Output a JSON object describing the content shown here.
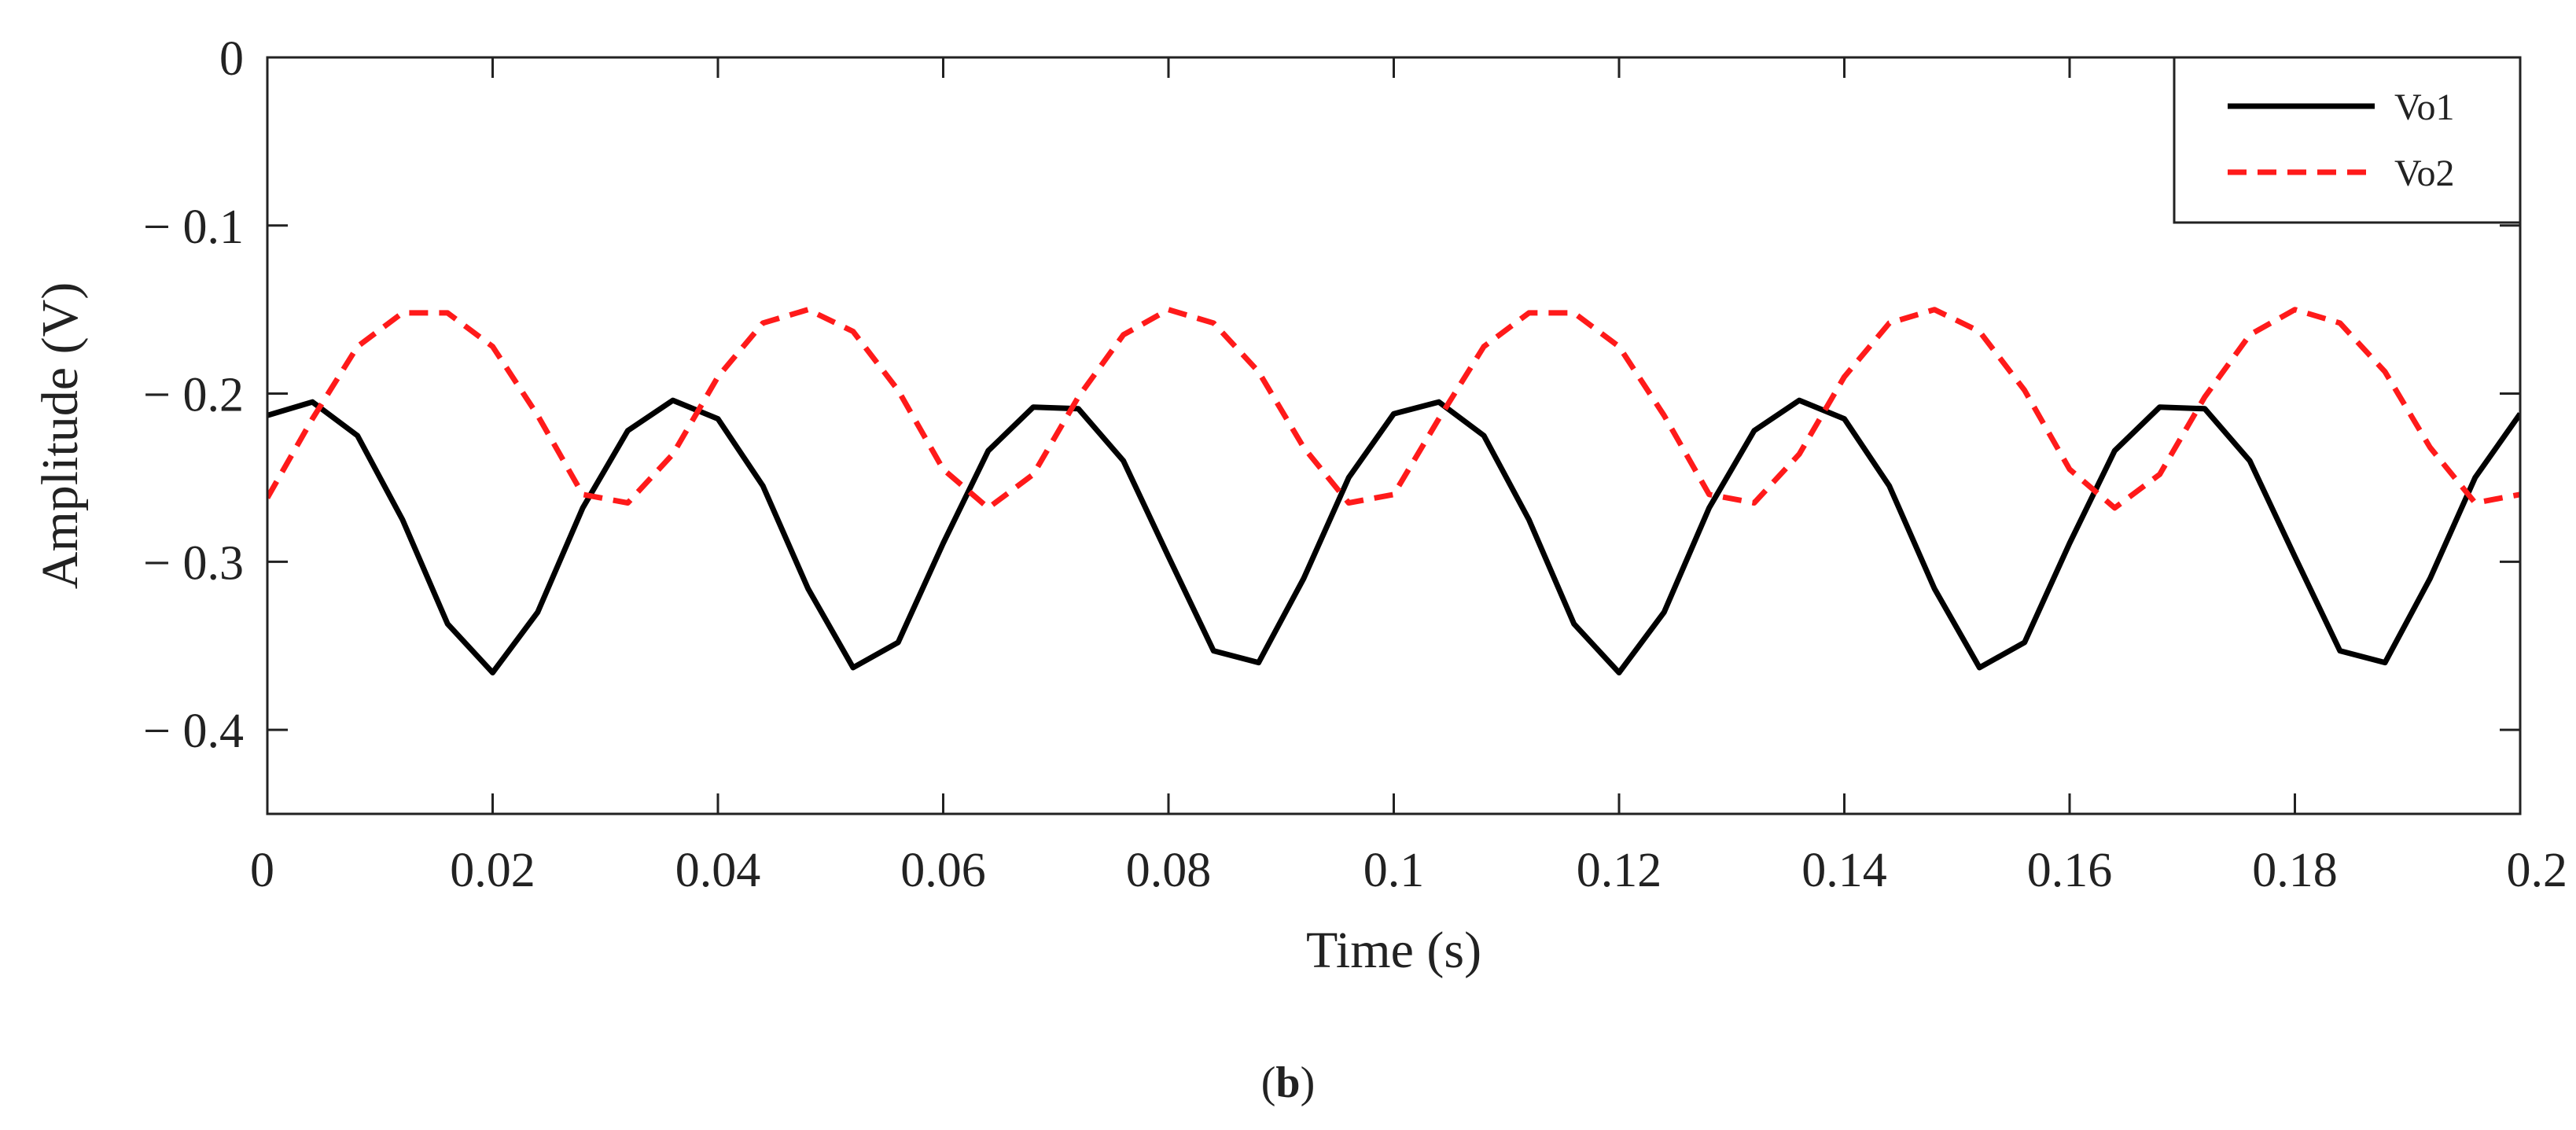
{
  "chart_data": {
    "type": "line",
    "title": "",
    "xlabel": "Time (s)",
    "ylabel": "Amplitude (V)",
    "xlim": [
      0,
      0.2
    ],
    "ylim": [
      -0.45,
      0
    ],
    "xticks": [
      0,
      0.02,
      0.04,
      0.06,
      0.08,
      0.1,
      0.12,
      0.14,
      0.16,
      0.18,
      0.2
    ],
    "xtick_labels": [
      "0",
      "0.02",
      "0.04",
      "0.06",
      "0.08",
      "0.1",
      "0.12",
      "0.14",
      "0.16",
      "0.18",
      "0.2"
    ],
    "yticks": [
      0,
      -0.1,
      -0.2,
      -0.3,
      -0.4
    ],
    "ytick_labels": [
      "0",
      "− 0.1",
      "− 0.2",
      "− 0.3",
      "− 0.4"
    ],
    "grid": false,
    "legend_position": "top-right",
    "series": [
      {
        "name": "Vo1",
        "color": "#000000",
        "style": "solid",
        "x": [
          0,
          0.004,
          0.008,
          0.012,
          0.016,
          0.02,
          0.024,
          0.028,
          0.032,
          0.036,
          0.04,
          0.044,
          0.048,
          0.052,
          0.056,
          0.06,
          0.064,
          0.068,
          0.072,
          0.076,
          0.08,
          0.084,
          0.088,
          0.092,
          0.096,
          0.1,
          0.104,
          0.108,
          0.112,
          0.116,
          0.12,
          0.124,
          0.128,
          0.132,
          0.136,
          0.14,
          0.144,
          0.148,
          0.152,
          0.156,
          0.16,
          0.164,
          0.168,
          0.172,
          0.176,
          0.18,
          0.184,
          0.188,
          0.192,
          0.196,
          0.2
        ],
        "y": [
          -0.213,
          -0.205,
          -0.225,
          -0.275,
          -0.337,
          -0.366,
          -0.33,
          -0.268,
          -0.222,
          -0.204,
          -0.215,
          -0.255,
          -0.316,
          -0.363,
          -0.348,
          -0.289,
          -0.234,
          -0.208,
          -0.209,
          -0.24,
          -0.297,
          -0.353,
          -0.36,
          -0.31,
          -0.25,
          -0.212,
          -0.205,
          -0.225,
          -0.275,
          -0.337,
          -0.366,
          -0.33,
          -0.268,
          -0.222,
          -0.204,
          -0.215,
          -0.255,
          -0.316,
          -0.363,
          -0.348,
          -0.289,
          -0.234,
          -0.208,
          -0.209,
          -0.24,
          -0.297,
          -0.353,
          -0.36,
          -0.31,
          -0.25,
          -0.212
        ]
      },
      {
        "name": "Vo2",
        "color": "#ff1a1a",
        "style": "dashed",
        "x": [
          0,
          0.004,
          0.008,
          0.012,
          0.016,
          0.02,
          0.024,
          0.028,
          0.032,
          0.036,
          0.04,
          0.044,
          0.048,
          0.052,
          0.056,
          0.06,
          0.064,
          0.068,
          0.072,
          0.076,
          0.08,
          0.084,
          0.088,
          0.092,
          0.096,
          0.1,
          0.104,
          0.108,
          0.112,
          0.116,
          0.12,
          0.124,
          0.128,
          0.132,
          0.136,
          0.14,
          0.144,
          0.148,
          0.152,
          0.156,
          0.16,
          0.164,
          0.168,
          0.172,
          0.176,
          0.18,
          0.184,
          0.188,
          0.192,
          0.196,
          0.2
        ],
        "y": [
          -0.262,
          -0.215,
          -0.172,
          -0.152,
          -0.152,
          -0.172,
          -0.213,
          -0.26,
          -0.265,
          -0.236,
          -0.19,
          -0.158,
          -0.15,
          -0.163,
          -0.198,
          -0.245,
          -0.268,
          -0.248,
          -0.202,
          -0.165,
          -0.15,
          -0.158,
          -0.187,
          -0.232,
          -0.265,
          -0.26,
          -0.215,
          -0.172,
          -0.152,
          -0.152,
          -0.172,
          -0.213,
          -0.26,
          -0.265,
          -0.236,
          -0.19,
          -0.158,
          -0.15,
          -0.163,
          -0.198,
          -0.245,
          -0.268,
          -0.248,
          -0.202,
          -0.165,
          -0.15,
          -0.158,
          -0.187,
          -0.232,
          -0.265,
          -0.26
        ]
      }
    ]
  },
  "caption": {
    "open": "(",
    "letter": "b",
    "close": ")"
  }
}
